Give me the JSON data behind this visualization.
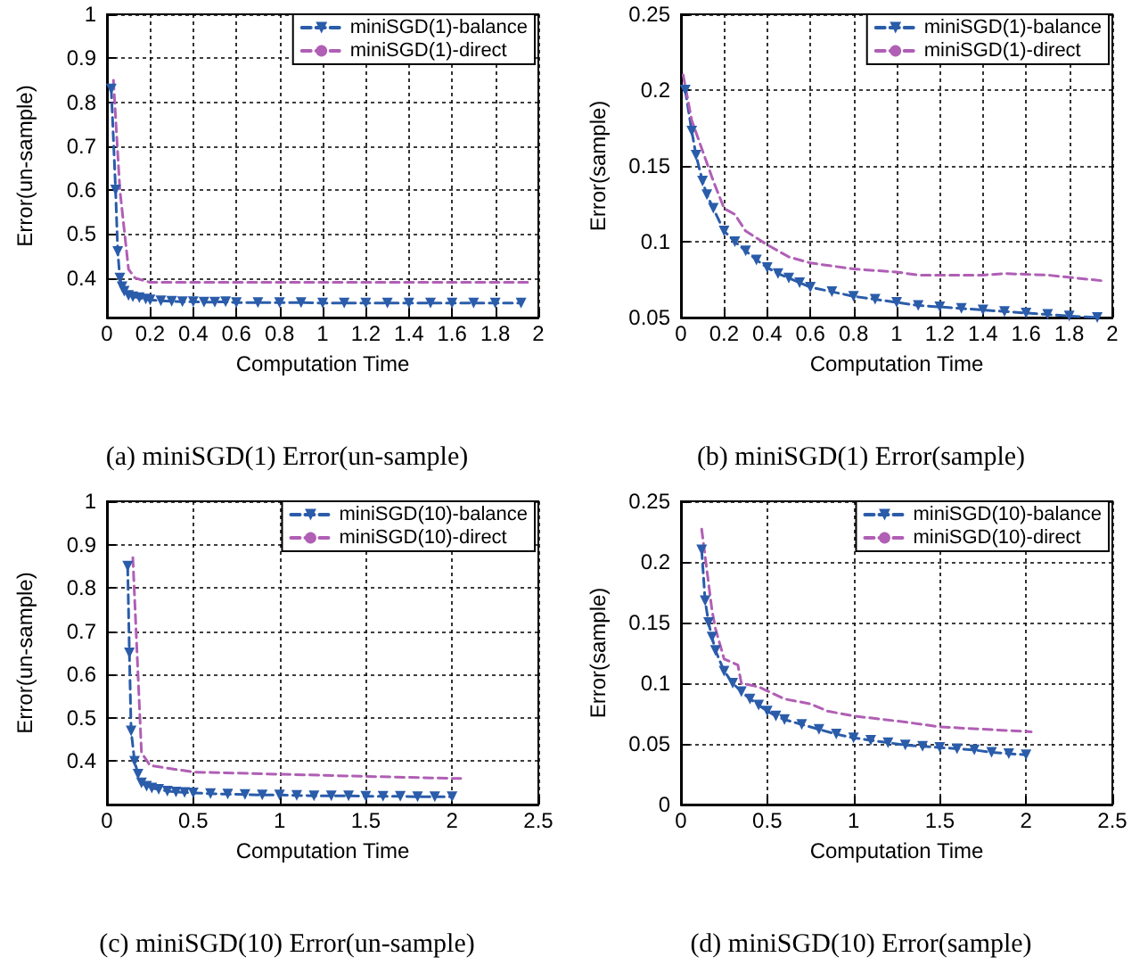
{
  "chart_data": [
    {
      "type": "line",
      "title": "(a) miniSGD(1) Error(un-sample)",
      "xlabel": "Computation Time",
      "ylabel": "Error(un-sample)",
      "xlim": [
        0,
        2
      ],
      "xticks": [
        0,
        0.2,
        0.4,
        0.6,
        0.8,
        1,
        1.2,
        1.4,
        1.6,
        1.8,
        2
      ],
      "ylim": [
        0.31,
        1
      ],
      "yticks": [
        0.4,
        0.5,
        0.6,
        0.7,
        0.8,
        0.9,
        1
      ],
      "grid": true,
      "legend": "top right",
      "series": [
        {
          "name": "miniSGD(1)-balance",
          "color": "#2a5caa",
          "marker": "triangle",
          "line_style": "dashed",
          "x": [
            0.02,
            0.04,
            0.05,
            0.06,
            0.07,
            0.08,
            0.1,
            0.12,
            0.15,
            0.18,
            0.2,
            0.25,
            0.3,
            0.35,
            0.4,
            0.45,
            0.5,
            0.55,
            0.6,
            0.7,
            0.8,
            0.9,
            1.0,
            1.1,
            1.2,
            1.3,
            1.4,
            1.5,
            1.6,
            1.7,
            1.8,
            1.92
          ],
          "values": [
            0.83,
            0.6,
            0.46,
            0.4,
            0.38,
            0.37,
            0.36,
            0.357,
            0.355,
            0.352,
            0.35,
            0.348,
            0.347,
            0.346,
            0.346,
            0.345,
            0.345,
            0.346,
            0.344,
            0.344,
            0.344,
            0.344,
            0.343,
            0.343,
            0.343,
            0.343,
            0.343,
            0.343,
            0.343,
            0.343,
            0.343,
            0.343
          ]
        },
        {
          "name": "miniSGD(1)-direct",
          "color": "#b05fb5",
          "marker": "none",
          "line_style": "dashed",
          "x": [
            0.03,
            0.06,
            0.1,
            0.13,
            0.2,
            0.5,
            1.0,
            1.5,
            1.9,
            1.97
          ],
          "values": [
            0.85,
            0.6,
            0.42,
            0.4,
            0.39,
            0.39,
            0.39,
            0.39,
            0.39,
            0.39
          ]
        }
      ]
    },
    {
      "type": "line",
      "title": "(b) miniSGD(1) Error(sample)",
      "xlabel": "Computation Time",
      "ylabel": "Error(sample)",
      "xlim": [
        0,
        2
      ],
      "xticks": [
        0,
        0.2,
        0.4,
        0.6,
        0.8,
        1,
        1.2,
        1.4,
        1.6,
        1.8,
        2
      ],
      "ylim": [
        0.05,
        0.25
      ],
      "yticks": [
        0.05,
        0.1,
        0.15,
        0.2,
        0.25
      ],
      "grid": true,
      "legend": "top right",
      "series": [
        {
          "name": "miniSGD(1)-balance",
          "color": "#2a5caa",
          "marker": "triangle",
          "line_style": "dashed",
          "x": [
            0.02,
            0.05,
            0.07,
            0.1,
            0.12,
            0.15,
            0.2,
            0.25,
            0.3,
            0.35,
            0.4,
            0.45,
            0.5,
            0.55,
            0.6,
            0.7,
            0.8,
            0.9,
            1.0,
            1.1,
            1.2,
            1.3,
            1.4,
            1.5,
            1.6,
            1.7,
            1.8,
            1.93
          ],
          "values": [
            0.2,
            0.173,
            0.157,
            0.14,
            0.131,
            0.122,
            0.107,
            0.1,
            0.094,
            0.088,
            0.083,
            0.079,
            0.076,
            0.073,
            0.07,
            0.067,
            0.064,
            0.062,
            0.06,
            0.058,
            0.057,
            0.056,
            0.055,
            0.054,
            0.053,
            0.052,
            0.051,
            0.05
          ]
        },
        {
          "name": "miniSGD(1)-direct",
          "color": "#b05fb5",
          "marker": "none",
          "line_style": "dashed",
          "x": [
            0.01,
            0.05,
            0.1,
            0.15,
            0.2,
            0.25,
            0.3,
            0.4,
            0.5,
            0.6,
            0.65,
            0.8,
            1.0,
            1.1,
            1.4,
            1.5,
            1.7,
            1.97
          ],
          "values": [
            0.21,
            0.18,
            0.16,
            0.14,
            0.122,
            0.118,
            0.107,
            0.098,
            0.09,
            0.086,
            0.085,
            0.082,
            0.08,
            0.078,
            0.078,
            0.079,
            0.078,
            0.074
          ]
        }
      ]
    },
    {
      "type": "line",
      "title": "(c) miniSGD(10) Error(un-sample)",
      "xlabel": "Computation Time",
      "ylabel": "Error(un-sample)",
      "xlim": [
        0,
        2.5
      ],
      "xticks": [
        0,
        0.5,
        1,
        1.5,
        2,
        2.5
      ],
      "ylim": [
        0.3,
        1
      ],
      "yticks": [
        0.4,
        0.5,
        0.6,
        0.7,
        0.8,
        0.9,
        1
      ],
      "grid": true,
      "legend": "top right",
      "series": [
        {
          "name": "miniSGD(10)-balance",
          "color": "#2a5caa",
          "marker": "triangle",
          "line_style": "dashed",
          "x": [
            0.12,
            0.13,
            0.14,
            0.16,
            0.18,
            0.2,
            0.23,
            0.26,
            0.3,
            0.35,
            0.4,
            0.45,
            0.5,
            0.6,
            0.7,
            0.8,
            0.9,
            1.0,
            1.1,
            1.2,
            1.3,
            1.4,
            1.5,
            1.6,
            1.7,
            1.8,
            1.9,
            2.0
          ],
          "values": [
            0.85,
            0.65,
            0.47,
            0.4,
            0.37,
            0.35,
            0.342,
            0.338,
            0.335,
            0.331,
            0.329,
            0.328,
            0.327,
            0.325,
            0.324,
            0.323,
            0.322,
            0.322,
            0.321,
            0.32,
            0.32,
            0.32,
            0.319,
            0.319,
            0.319,
            0.318,
            0.318,
            0.318
          ]
        },
        {
          "name": "miniSGD(10)-direct",
          "color": "#b05fb5",
          "marker": "none",
          "line_style": "dashed",
          "x": [
            0.15,
            0.18,
            0.2,
            0.25,
            0.5,
            1.0,
            1.5,
            2.05
          ],
          "values": [
            0.87,
            0.6,
            0.42,
            0.39,
            0.375,
            0.37,
            0.365,
            0.36
          ]
        }
      ]
    },
    {
      "type": "line",
      "title": "(d) miniSGD(10) Error(sample)",
      "xlabel": "Computation Time",
      "ylabel": "Error(sample)",
      "xlim": [
        0,
        2.5
      ],
      "xticks": [
        0,
        0.5,
        1,
        1.5,
        2,
        2.5
      ],
      "ylim": [
        0,
        0.25
      ],
      "yticks": [
        0,
        0.05,
        0.1,
        0.15,
        0.2,
        0.25
      ],
      "grid": true,
      "legend": "top right",
      "series": [
        {
          "name": "miniSGD(10)-balance",
          "color": "#2a5caa",
          "marker": "triangle",
          "line_style": "dashed",
          "x": [
            0.12,
            0.14,
            0.16,
            0.18,
            0.2,
            0.25,
            0.3,
            0.35,
            0.4,
            0.45,
            0.5,
            0.55,
            0.6,
            0.7,
            0.8,
            0.9,
            1.0,
            1.1,
            1.2,
            1.3,
            1.4,
            1.5,
            1.6,
            1.7,
            1.8,
            1.9,
            2.0
          ],
          "values": [
            0.21,
            0.168,
            0.15,
            0.138,
            0.127,
            0.11,
            0.1,
            0.093,
            0.087,
            0.082,
            0.077,
            0.073,
            0.07,
            0.066,
            0.062,
            0.058,
            0.055,
            0.053,
            0.051,
            0.049,
            0.048,
            0.047,
            0.046,
            0.045,
            0.043,
            0.042,
            0.041
          ]
        },
        {
          "name": "miniSGD(10)-direct",
          "color": "#b05fb5",
          "marker": "none",
          "line_style": "dashed",
          "x": [
            0.12,
            0.18,
            0.2,
            0.25,
            0.33,
            0.35,
            0.45,
            0.6,
            0.75,
            0.85,
            1.0,
            1.3,
            1.5,
            2.03
          ],
          "values": [
            0.227,
            0.16,
            0.145,
            0.12,
            0.115,
            0.1,
            0.097,
            0.087,
            0.083,
            0.077,
            0.073,
            0.068,
            0.064,
            0.06
          ]
        }
      ]
    }
  ]
}
